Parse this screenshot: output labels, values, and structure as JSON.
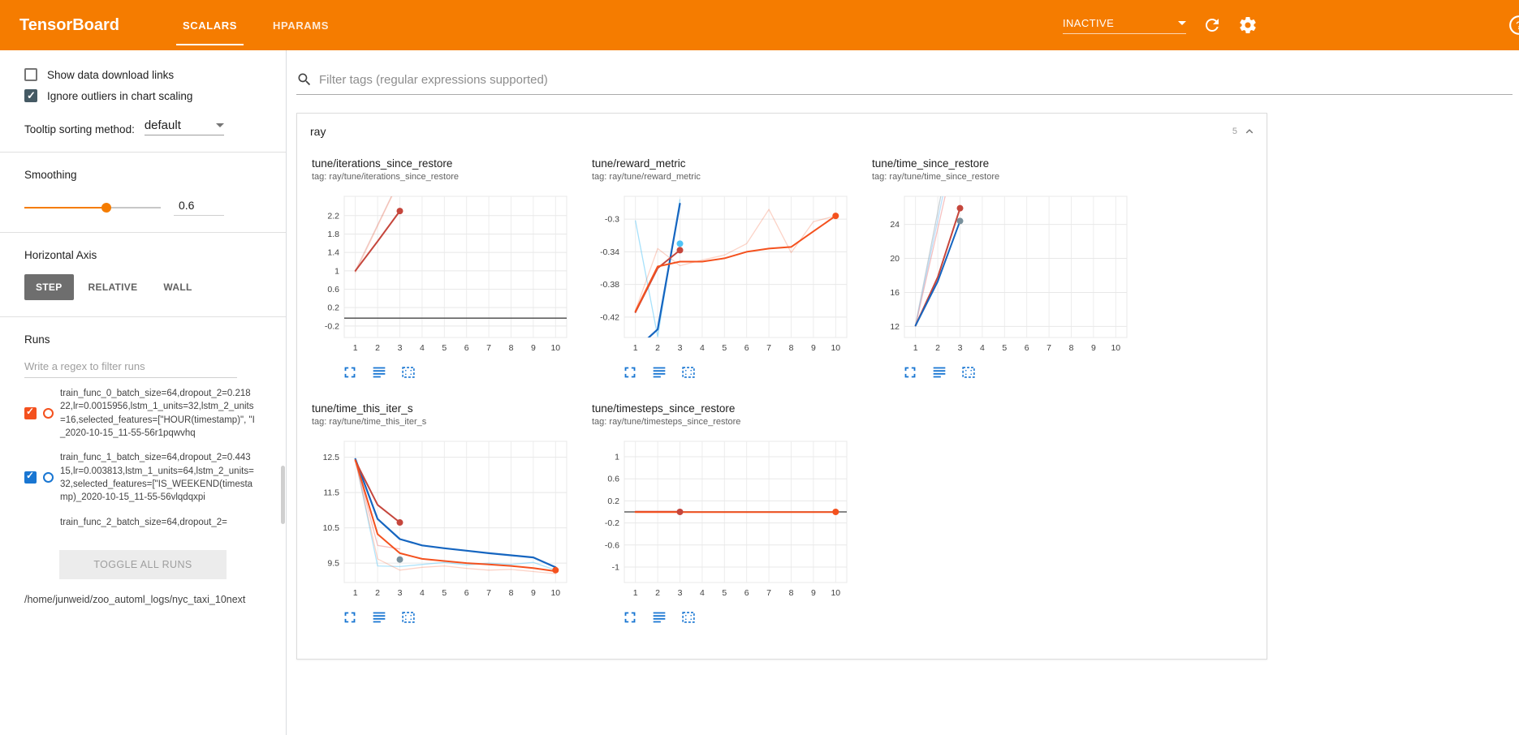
{
  "colors": {
    "accent": "#f57c00",
    "toolbar_icon_blue": "#1976d2",
    "run_orange": "#f4511e",
    "run_blue": "#1976d2",
    "run_red": "#c5463c",
    "run_lightblue": "#4fc3f7",
    "steady_gray": "#616161"
  },
  "icons": {
    "search": "magnifier",
    "refresh": "circular-arrow",
    "settings": "gear",
    "help": "question-circle",
    "collapse": "chevron-up",
    "expand_chart": "fullscreen-corners",
    "run_lines": "stacked-lines",
    "fit_domain": "dashed-square"
  },
  "header": {
    "title": "TensorBoard",
    "tabs": [
      {
        "label": "SCALARS",
        "active": true
      },
      {
        "label": "HPARAMS",
        "active": false
      }
    ],
    "status": "INACTIVE"
  },
  "sidebar": {
    "show_download_label": "Show data download links",
    "show_download_checked": false,
    "ignore_outliers_label": "Ignore outliers in chart scaling",
    "ignore_outliers_checked": true,
    "tooltip_label": "Tooltip sorting method:",
    "tooltip_value": "default",
    "smoothing_label": "Smoothing",
    "smoothing_value": "0.6",
    "haxis_label": "Horizontal Axis",
    "haxis_options": [
      "STEP",
      "RELATIVE",
      "WALL"
    ],
    "haxis_selected": "STEP",
    "runs_label": "Runs",
    "runs_filter_placeholder": "Write a regex to filter runs",
    "runs": [
      {
        "label": "train_func_0_batch_size=64,dropout_2=0.21822,lr=0.0015956,lstm_1_units=32,lstm_2_units=16,selected_features=[\"HOUR(timestamp)\", \"I_2020-10-15_11-55-56r1pqwvhq",
        "checked": true,
        "color": "#f4511e"
      },
      {
        "label": "train_func_1_batch_size=64,dropout_2=0.44315,lr=0.003813,lstm_1_units=64,lstm_2_units=32,selected_features=[\"IS_WEEKEND(timestamp)_2020-10-15_11-55-56vlqdqxpi",
        "checked": true,
        "color": "#1976d2"
      },
      {
        "label": "train_func_2_batch_size=64,dropout_2=",
        "checked": null,
        "color": null
      }
    ],
    "toggle_all_label": "TOGGLE ALL RUNS",
    "log_dir": "/home/junweid/zoo_automl_logs/nyc_taxi_10next"
  },
  "main": {
    "filter_placeholder": "Filter tags (regular expressions supported)",
    "card": {
      "name": "ray",
      "count": "5"
    }
  },
  "chart_data": [
    {
      "type": "line",
      "title": "tune/iterations_since_restore",
      "tag": "tag: ray/tune/iterations_since_restore",
      "xlim": [
        0.5,
        10.5
      ],
      "xticks": [
        1,
        2,
        3,
        4,
        5,
        6,
        7,
        8,
        9,
        10
      ],
      "ylim": [
        -0.45,
        2.62
      ],
      "yticks": [
        -0.2,
        0.2,
        0.6,
        1,
        1.4,
        1.8,
        2.2
      ],
      "grid": true,
      "legend": "none",
      "series": [
        {
          "name": "train_func_2 raw",
          "color": "#c5463c",
          "opacity": 0.25,
          "width": 1.3,
          "points": [
            [
              1,
              1
            ],
            [
              2,
              2
            ],
            [
              3,
              3
            ]
          ]
        },
        {
          "name": "train_func_0 raw",
          "color": "#f4511e",
          "opacity": 0.2,
          "width": 1.3,
          "points": [
            [
              1,
              0.96
            ],
            [
              2,
              1.97
            ],
            [
              3,
              2.98
            ]
          ]
        },
        {
          "name": "train_func_2 smoothed",
          "color": "#c5463c",
          "width": 2,
          "points": [
            [
              1,
              1
            ],
            [
              2,
              1.64
            ],
            [
              3,
              2.3
            ]
          ]
        },
        {
          "name": "steady run",
          "color": "#616161",
          "width": 1.6,
          "points": [
            [
              0.5,
              -0.03
            ],
            [
              10.5,
              -0.03
            ]
          ]
        }
      ],
      "markers": [
        {
          "x": 3,
          "y": 2.3,
          "color": "#c5463c"
        }
      ]
    },
    {
      "type": "line",
      "title": "tune/reward_metric",
      "tag": "tag: ray/tune/reward_metric",
      "xlim": [
        0.5,
        10.5
      ],
      "xticks": [
        1,
        2,
        3,
        4,
        5,
        6,
        7,
        8,
        9,
        10
      ],
      "ylim": [
        -0.445,
        -0.272
      ],
      "yticks": [
        -0.42,
        -0.38,
        -0.34,
        -0.3
      ],
      "grid": true,
      "legend": "none",
      "series": [
        {
          "name": "lightblue raw",
          "color": "#4fc3f7",
          "opacity": 0.5,
          "width": 1.3,
          "points": [
            [
              1,
              -0.302
            ],
            [
              2,
              -0.444
            ],
            [
              3,
              -0.276
            ]
          ]
        },
        {
          "name": "orange raw",
          "color": "#f4511e",
          "opacity": 0.25,
          "width": 1.3,
          "points": [
            [
              1,
              -0.412
            ],
            [
              2,
              -0.336
            ],
            [
              3,
              -0.357
            ],
            [
              4,
              -0.35
            ],
            [
              5,
              -0.344
            ],
            [
              6,
              -0.33
            ],
            [
              7,
              -0.288
            ],
            [
              8,
              -0.341
            ],
            [
              9,
              -0.303
            ],
            [
              10,
              -0.296
            ]
          ]
        },
        {
          "name": "blue smoothed",
          "color": "#1565c0",
          "width": 2.2,
          "points": [
            [
              1,
              -0.46
            ],
            [
              2,
              -0.435
            ],
            [
              3,
              -0.281
            ]
          ]
        },
        {
          "name": "red smoothed",
          "color": "#c5463c",
          "width": 2,
          "points": [
            [
              1,
              -0.414
            ],
            [
              2,
              -0.36
            ],
            [
              3,
              -0.338
            ]
          ]
        },
        {
          "name": "orange smoothed",
          "color": "#f4511e",
          "width": 2,
          "points": [
            [
              1,
              -0.413
            ],
            [
              2,
              -0.358
            ],
            [
              3,
              -0.352
            ],
            [
              4,
              -0.352
            ],
            [
              5,
              -0.348
            ],
            [
              6,
              -0.34
            ],
            [
              7,
              -0.336
            ],
            [
              8,
              -0.334
            ],
            [
              9,
              -0.315
            ],
            [
              10,
              -0.296
            ]
          ]
        }
      ],
      "markers": [
        {
          "x": 3,
          "y": -0.33,
          "color": "#4fc3f7"
        },
        {
          "x": 3,
          "y": -0.338,
          "color": "#c5463c"
        },
        {
          "x": 10,
          "y": -0.296,
          "color": "#f4511e"
        }
      ]
    },
    {
      "type": "line",
      "title": "tune/time_since_restore",
      "tag": "tag: ray/tune/time_since_restore",
      "xlim": [
        0.5,
        10.5
      ],
      "xticks": [
        1,
        2,
        3,
        4,
        5,
        6,
        7,
        8,
        9,
        10
      ],
      "ylim": [
        10.7,
        27.3
      ],
      "yticks": [
        12,
        16,
        20,
        24
      ],
      "grid": true,
      "legend": "none",
      "series": [
        {
          "name": "gray raw",
          "color": "#b0bec5",
          "opacity": 0.7,
          "width": 1.3,
          "points": [
            [
              1,
              12.2
            ],
            [
              2,
              25.5
            ],
            [
              3,
              39
            ]
          ]
        },
        {
          "name": "blue raw",
          "color": "#90caf9",
          "opacity": 0.6,
          "width": 1.3,
          "points": [
            [
              1,
              12.1
            ],
            [
              2,
              24.5
            ],
            [
              3,
              37
            ]
          ]
        },
        {
          "name": "pink raw",
          "color": "#ef9a9a",
          "opacity": 0.6,
          "width": 1.3,
          "points": [
            [
              1,
              12.1
            ],
            [
              2,
              23.5
            ],
            [
              3,
              35
            ]
          ]
        },
        {
          "name": "red smoothed",
          "color": "#c5463c",
          "width": 2,
          "points": [
            [
              1,
              12.1
            ],
            [
              2,
              17.8
            ],
            [
              3,
              25.9
            ]
          ]
        },
        {
          "name": "blue smoothed",
          "color": "#1565c0",
          "width": 2,
          "points": [
            [
              1,
              12.1
            ],
            [
              2,
              17.3
            ],
            [
              3,
              24.4
            ]
          ]
        }
      ],
      "markers": [
        {
          "x": 3,
          "y": 25.9,
          "color": "#c5463c"
        },
        {
          "x": 3,
          "y": 24.4,
          "color": "#78909c"
        }
      ]
    },
    {
      "type": "line",
      "title": "tune/time_this_iter_s",
      "tag": "tag: ray/tune/time_this_iter_s",
      "xlim": [
        0.5,
        10.5
      ],
      "xticks": [
        1,
        2,
        3,
        4,
        5,
        6,
        7,
        8,
        9,
        10
      ],
      "ylim": [
        8.95,
        12.95
      ],
      "yticks": [
        9.5,
        10.5,
        11.5,
        12.5
      ],
      "grid": true,
      "legend": "none",
      "series": [
        {
          "name": "lightblue raw",
          "color": "#4fc3f7",
          "opacity": 0.45,
          "width": 1.3,
          "points": [
            [
              1,
              12.45
            ],
            [
              2,
              9.42
            ],
            [
              3,
              9.4
            ],
            [
              4,
              9.46
            ],
            [
              5,
              9.52
            ],
            [
              6,
              9.45
            ],
            [
              7,
              9.5
            ],
            [
              8,
              9.46
            ],
            [
              9,
              9.52
            ],
            [
              10,
              9.3
            ]
          ]
        },
        {
          "name": "orange raw",
          "color": "#f4511e",
          "opacity": 0.25,
          "width": 1.3,
          "points": [
            [
              1,
              12.4
            ],
            [
              2,
              9.62
            ],
            [
              3,
              9.3
            ],
            [
              4,
              9.38
            ],
            [
              5,
              9.42
            ],
            [
              6,
              9.35
            ],
            [
              7,
              9.3
            ],
            [
              8,
              9.32
            ],
            [
              9,
              9.26
            ],
            [
              10,
              9.2
            ]
          ]
        },
        {
          "name": "pink raw",
          "color": "#ef9a9a",
          "opacity": 0.6,
          "width": 1.3,
          "points": [
            [
              1,
              12.4
            ],
            [
              2,
              10.0
            ],
            [
              3,
              9.9
            ]
          ]
        },
        {
          "name": "blue smoothed",
          "color": "#1565c0",
          "width": 2.2,
          "points": [
            [
              1,
              12.45
            ],
            [
              2,
              10.75
            ],
            [
              3,
              10.18
            ],
            [
              4,
              10.0
            ],
            [
              5,
              9.92
            ],
            [
              6,
              9.85
            ],
            [
              7,
              9.78
            ],
            [
              8,
              9.72
            ],
            [
              9,
              9.66
            ],
            [
              10,
              9.38
            ]
          ]
        },
        {
          "name": "red smoothed",
          "color": "#c5463c",
          "width": 2,
          "points": [
            [
              1,
              12.4
            ],
            [
              2,
              11.15
            ],
            [
              3,
              10.65
            ]
          ]
        },
        {
          "name": "orange smoothed",
          "color": "#f4511e",
          "width": 2,
          "points": [
            [
              1,
              12.42
            ],
            [
              2,
              10.32
            ],
            [
              3,
              9.78
            ],
            [
              4,
              9.62
            ],
            [
              5,
              9.56
            ],
            [
              6,
              9.5
            ],
            [
              7,
              9.46
            ],
            [
              8,
              9.42
            ],
            [
              9,
              9.36
            ],
            [
              10,
              9.27
            ]
          ]
        }
      ],
      "markers": [
        {
          "x": 3,
          "y": 10.65,
          "color": "#c5463c"
        },
        {
          "x": 3,
          "y": 9.6,
          "color": "#78909c"
        },
        {
          "x": 10,
          "y": 9.3,
          "color": "#f4511e"
        }
      ]
    },
    {
      "type": "line",
      "title": "tune/timesteps_since_restore",
      "tag": "tag: ray/tune/timesteps_since_restore",
      "xlim": [
        0.5,
        10.5
      ],
      "xticks": [
        1,
        2,
        3,
        4,
        5,
        6,
        7,
        8,
        9,
        10
      ],
      "ylim": [
        -1.28,
        1.28
      ],
      "yticks": [
        -1,
        -0.6,
        -0.2,
        0.2,
        0.6,
        1
      ],
      "grid": true,
      "legend": "none",
      "series": [
        {
          "name": "steady gray",
          "color": "#616161",
          "width": 1.6,
          "points": [
            [
              0.5,
              0
            ],
            [
              10.5,
              0
            ]
          ]
        },
        {
          "name": "red smoothed",
          "color": "#c5463c",
          "width": 2,
          "points": [
            [
              1,
              0.004
            ],
            [
              3,
              0.004
            ]
          ]
        },
        {
          "name": "orange smoothed",
          "color": "#f4511e",
          "width": 2,
          "points": [
            [
              1,
              -0.004
            ],
            [
              10,
              -0.004
            ]
          ]
        }
      ],
      "markers": [
        {
          "x": 3,
          "y": 0,
          "color": "#c5463c"
        },
        {
          "x": 10,
          "y": 0,
          "color": "#f4511e"
        }
      ]
    }
  ]
}
